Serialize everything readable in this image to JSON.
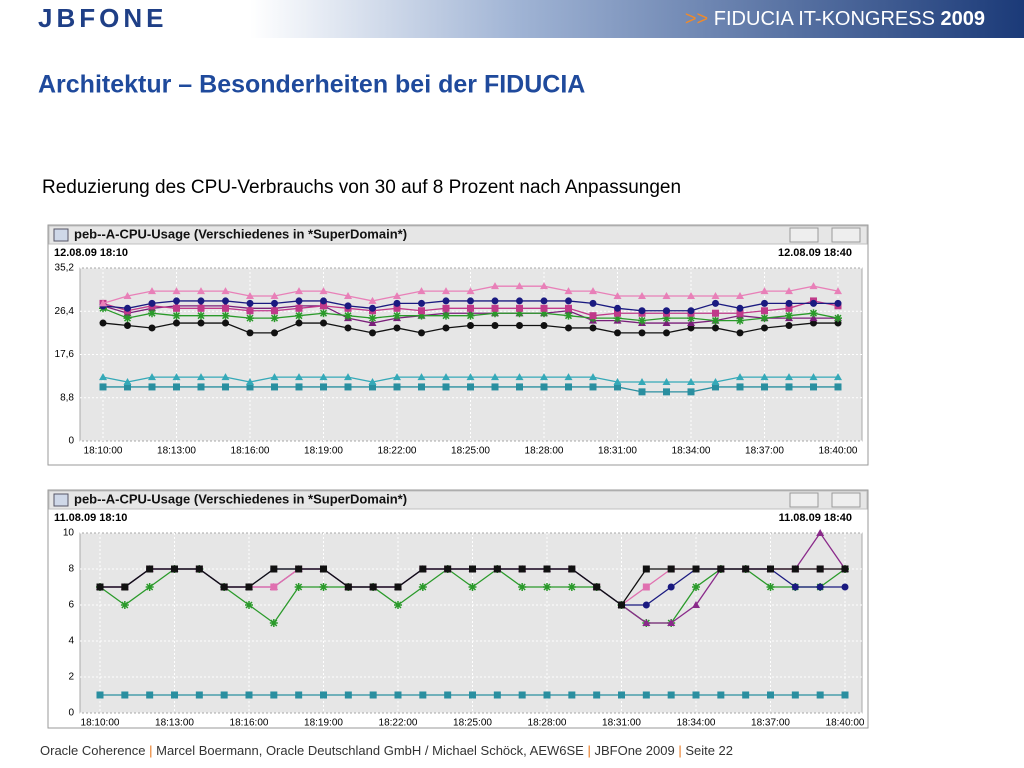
{
  "header": {
    "logo": "JBFONE",
    "banner": {
      "arrows": ">>",
      "event": "FIDUCIA IT-KONGRESS",
      "year": "2009"
    }
  },
  "title": "Architektur – Besonderheiten bei der FIDUCIA",
  "subtitle": "Reduzierung des CPU-Verbrauchs von 30 auf 8 Prozent nach Anpassungen",
  "chart_data": [
    {
      "type": "line",
      "title": "peb--A-CPU-Usage (Verschiedenes in *SuperDomain*)",
      "start": "12.08.09 18:10",
      "end": "12.08.09 18:40",
      "categories": [
        "18:10:00",
        null,
        null,
        "18:13:00",
        null,
        null,
        "18:16:00",
        null,
        null,
        "18:19:00",
        null,
        null,
        "18:22:00",
        null,
        null,
        "18:25:00",
        null,
        null,
        "18:28:00",
        null,
        null,
        "18:31:00",
        null,
        null,
        "18:34:00",
        null,
        null,
        "18:37:00",
        null,
        null,
        "18:40:00"
      ],
      "ylim": [
        0,
        35.2
      ],
      "yticks": [
        0,
        {
          "value": 8.8,
          "label": "8,8"
        },
        {
          "value": 17.6,
          "label": "17,6"
        },
        {
          "value": 26.4,
          "label": "26,4"
        },
        {
          "value": 35.2,
          "label": "35,2"
        }
      ],
      "grid": true,
      "series": [
        {
          "color": "#2a8fa0",
          "marker": "square",
          "values": [
            11,
            11,
            11,
            11,
            11,
            11,
            11,
            11,
            11,
            11,
            11,
            11,
            11,
            11,
            11,
            11,
            11,
            11,
            11,
            11,
            11,
            11,
            10,
            10,
            10,
            11,
            11,
            11,
            11,
            11,
            11
          ]
        },
        {
          "color": "#35a9b8",
          "marker": "triangle",
          "values": [
            13,
            12,
            13,
            13,
            13,
            13,
            12,
            13,
            13,
            13,
            13,
            12,
            13,
            13,
            13,
            13,
            13,
            13,
            13,
            13,
            13,
            12,
            12,
            12,
            12,
            12,
            13,
            13,
            13,
            13,
            13
          ]
        },
        {
          "color": "#111111",
          "marker": "circle",
          "values": [
            24,
            23.5,
            23,
            24,
            24,
            24,
            22,
            22,
            24,
            24,
            23,
            22,
            23,
            22,
            23,
            23.5,
            23.5,
            23.5,
            23.5,
            23,
            23,
            22,
            22,
            22,
            23,
            23,
            22,
            23,
            23.5,
            24,
            24
          ]
        },
        {
          "color": "#7a1f7a",
          "marker": "triangle",
          "values": [
            27.5,
            26,
            27,
            27.5,
            27.5,
            27.5,
            27,
            27,
            27.5,
            27.5,
            25,
            24,
            25,
            25.5,
            26,
            26,
            26,
            26,
            26,
            26.5,
            24.5,
            24.5,
            24,
            24,
            24,
            24.5,
            25.5,
            25,
            25,
            25,
            25
          ]
        },
        {
          "color": "#2a9a2a",
          "marker": "star",
          "values": [
            27,
            25,
            26,
            25.5,
            25.5,
            25.5,
            25,
            25,
            25.5,
            26,
            25.5,
            25,
            25.5,
            25.5,
            25.5,
            25.5,
            26,
            26,
            26,
            25.5,
            25,
            25,
            24.5,
            25,
            25,
            24.5,
            24.5,
            25,
            25.5,
            26,
            25
          ]
        },
        {
          "color": "#c03a8a",
          "marker": "square",
          "values": [
            28,
            26.5,
            27.5,
            27,
            27,
            27,
            26.5,
            26.5,
            27,
            27.5,
            27,
            26.5,
            27,
            26.5,
            27,
            27,
            27,
            27,
            27,
            27,
            25.5,
            26,
            26,
            26,
            26,
            26,
            26,
            26.5,
            27,
            28.5,
            27.5
          ]
        },
        {
          "color": "#1a1a80",
          "marker": "circle",
          "values": [
            27.5,
            27,
            28,
            28.5,
            28.5,
            28.5,
            28,
            28,
            28.5,
            28.5,
            27.5,
            27,
            28,
            28,
            28.5,
            28.5,
            28.5,
            28.5,
            28.5,
            28.5,
            28,
            27,
            26.5,
            26.5,
            26.5,
            28,
            27,
            28,
            28,
            28,
            28
          ]
        },
        {
          "color": "#e880b8",
          "marker": "triangle",
          "values": [
            28,
            29.5,
            30.5,
            30.5,
            30.5,
            30.5,
            29.5,
            29.5,
            30.5,
            30.5,
            29.5,
            28.5,
            29.5,
            30.5,
            30.5,
            30.5,
            31.5,
            31.5,
            31.5,
            30.5,
            30.5,
            29.5,
            29.5,
            29.5,
            29.5,
            29.5,
            29.5,
            30.5,
            30.5,
            31.5,
            30.5
          ]
        }
      ]
    },
    {
      "type": "line",
      "title": "peb--A-CPU-Usage (Verschiedenes in *SuperDomain*)",
      "start": "11.08.09 18:10",
      "end": "11.08.09 18:40",
      "categories": [
        "18:10:00",
        null,
        null,
        "18:13:00",
        null,
        null,
        "18:16:00",
        null,
        null,
        "18:19:00",
        null,
        null,
        "18:22:00",
        null,
        null,
        "18:25:00",
        null,
        null,
        "18:28:00",
        null,
        null,
        "18:31:00",
        null,
        null,
        "18:34:00",
        null,
        null,
        "18:37:00",
        null,
        null,
        "18:40:00"
      ],
      "ylim": [
        0,
        10
      ],
      "yticks": [
        0,
        2,
        4,
        6,
        8,
        10
      ],
      "grid": true,
      "series": [
        {
          "color": "#2a8fa0",
          "marker": "square",
          "values": [
            1,
            1,
            1,
            1,
            1,
            1,
            1,
            1,
            1,
            1,
            1,
            1,
            1,
            1,
            1,
            1,
            1,
            1,
            1,
            1,
            1,
            1,
            1,
            1,
            1,
            1,
            1,
            1,
            1,
            1,
            1
          ]
        },
        {
          "color": "#2a9a2a",
          "marker": "star",
          "values": [
            7,
            6,
            7,
            8,
            8,
            7,
            6,
            5,
            7,
            7,
            7,
            7,
            6,
            7,
            8,
            7,
            8,
            7,
            7,
            7,
            7,
            6,
            5,
            5,
            7,
            8,
            8,
            7,
            7,
            7,
            8
          ]
        },
        {
          "color": "#8a2a8a",
          "marker": "triangle",
          "values": [
            7,
            7,
            8,
            8,
            8,
            7,
            7,
            7,
            8,
            8,
            7,
            7,
            7,
            8,
            8,
            8,
            8,
            8,
            8,
            8,
            7,
            6,
            5,
            5,
            6,
            8,
            8,
            8,
            8,
            10,
            8
          ]
        },
        {
          "color": "#e070b0",
          "marker": "square",
          "values": [
            7,
            7,
            8,
            8,
            8,
            7,
            7,
            7,
            8,
            8,
            7,
            7,
            7,
            8,
            8,
            8,
            8,
            8,
            8,
            8,
            7,
            6,
            7,
            8,
            8,
            8,
            8,
            8,
            8,
            8,
            8
          ]
        },
        {
          "color": "#1a1a80",
          "marker": "circle",
          "values": [
            7,
            7,
            8,
            8,
            8,
            7,
            7,
            8,
            8,
            8,
            7,
            7,
            7,
            8,
            8,
            8,
            8,
            8,
            8,
            8,
            7,
            6,
            6,
            7,
            8,
            8,
            8,
            8,
            7,
            7,
            7
          ]
        },
        {
          "color": "#111111",
          "marker": "square",
          "values": [
            7,
            7,
            8,
            8,
            8,
            7,
            7,
            8,
            8,
            8,
            7,
            7,
            7,
            8,
            8,
            8,
            8,
            8,
            8,
            8,
            7,
            6,
            8,
            8,
            8,
            8,
            8,
            8,
            8,
            8,
            8
          ]
        }
      ]
    }
  ],
  "footer": {
    "separator": "|",
    "items": [
      "Oracle Coherence",
      "Marcel Boermann, Oracle Deutschland GmbH / Michael Schöck, AEW6SE",
      "JBFOne 2009",
      "Seite 22"
    ]
  }
}
